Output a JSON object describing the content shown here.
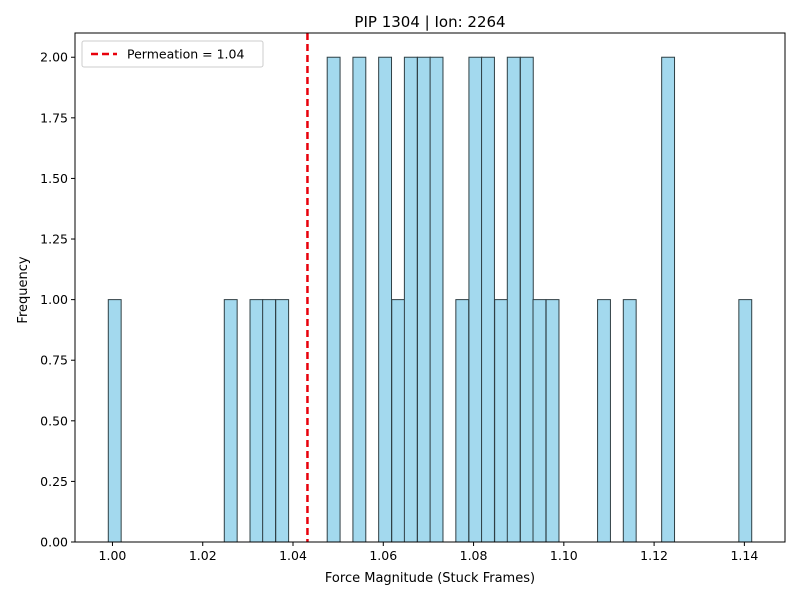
{
  "chart_data": {
    "type": "bar",
    "title": "PIP 1304 | Ion: 2264",
    "xlabel": "Force Magnitude (Stuck Frames)",
    "ylabel": "Frequency",
    "xlim": [
      0.9917,
      1.149
    ],
    "ylim": [
      0,
      2.1
    ],
    "bin_width": 0.00285,
    "bars": [
      {
        "x": 1.0005,
        "y": 1
      },
      {
        "x": 1.0262,
        "y": 1
      },
      {
        "x": 1.0319,
        "y": 1
      },
      {
        "x": 1.0347,
        "y": 1
      },
      {
        "x": 1.0376,
        "y": 1
      },
      {
        "x": 1.049,
        "y": 2
      },
      {
        "x": 1.0547,
        "y": 2
      },
      {
        "x": 1.0604,
        "y": 2
      },
      {
        "x": 1.0633,
        "y": 1
      },
      {
        "x": 1.0661,
        "y": 2
      },
      {
        "x": 1.069,
        "y": 2
      },
      {
        "x": 1.0718,
        "y": 2
      },
      {
        "x": 1.0775,
        "y": 1
      },
      {
        "x": 1.0804,
        "y": 2
      },
      {
        "x": 1.0832,
        "y": 2
      },
      {
        "x": 1.0861,
        "y": 1
      },
      {
        "x": 1.0889,
        "y": 2
      },
      {
        "x": 1.0918,
        "y": 2
      },
      {
        "x": 1.0946,
        "y": 1
      },
      {
        "x": 1.0975,
        "y": 1
      },
      {
        "x": 1.1089,
        "y": 1
      },
      {
        "x": 1.1146,
        "y": 1
      },
      {
        "x": 1.1231,
        "y": 2
      },
      {
        "x": 1.1402,
        "y": 1
      }
    ],
    "vline": {
      "x": 1.0432,
      "label": "Permeation = 1.04",
      "color": "#e8000b"
    },
    "x_ticks": [
      1.0,
      1.02,
      1.04,
      1.06,
      1.08,
      1.1,
      1.12,
      1.14
    ],
    "x_tick_labels": [
      "1.00",
      "1.02",
      "1.04",
      "1.06",
      "1.08",
      "1.10",
      "1.12",
      "1.14"
    ],
    "y_ticks": [
      0,
      0.25,
      0.5,
      0.75,
      1.0,
      1.25,
      1.5,
      1.75,
      2.0
    ],
    "y_tick_labels": [
      "0.00",
      "0.25",
      "0.50",
      "0.75",
      "1.00",
      "1.25",
      "1.50",
      "1.75",
      "2.00"
    ],
    "bar_color": "#a3d9ee",
    "bar_edge_color": "#2f3f44",
    "legend_position": "top-left",
    "grid": false
  }
}
